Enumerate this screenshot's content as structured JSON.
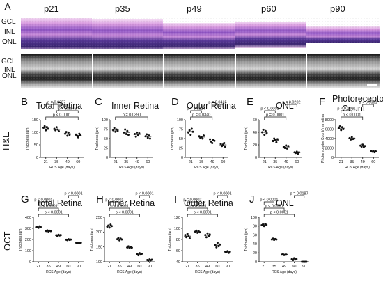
{
  "figure": {
    "panel_a": "A",
    "stages": [
      "p21",
      "p35",
      "p49",
      "p60",
      "p90"
    ],
    "layers_he": [
      "GCL",
      "INL",
      "ONL"
    ],
    "layers_oct": [
      "GCL",
      "INL",
      "ONL"
    ]
  },
  "rows": {
    "he": "H&E",
    "oct": "OCT"
  },
  "colors": {
    "he_purple": "#9b5cc9",
    "he_pink": "#e9b3e4",
    "oct_gray": "#9a9a9a"
  },
  "chart_data": [
    {
      "type": "scatter",
      "panel": "B",
      "title": "Total Retina",
      "ylabel": "Thickness (µm)",
      "xlabel": "RCS Age (days)",
      "categories": [
        "21",
        "35",
        "49",
        "60"
      ],
      "ylim": [
        0,
        150
      ],
      "yticks": [
        0,
        50,
        100,
        150
      ],
      "values": [
        [
          118,
          124,
          108,
          121,
          114
        ],
        [
          114,
          108,
          120,
          111,
          104
        ],
        [
          94,
          101,
          86,
          99,
          90
        ],
        [
          91,
          86,
          80,
          94,
          88
        ]
      ],
      "comparisons": [
        {
          "a": 0,
          "b": 3,
          "p": "p < 0.0001"
        },
        {
          "a": 1,
          "b": 3,
          "p": "p = 0.0042"
        },
        {
          "a": 0,
          "b": 2,
          "p": "p = 0.0057"
        }
      ]
    },
    {
      "type": "scatter",
      "panel": "C",
      "title": "Inner Retina",
      "ylabel": "Thickness (µm)",
      "xlabel": "RCS Age (days)",
      "categories": [
        "21",
        "35",
        "49",
        "60"
      ],
      "ylim": [
        0,
        100
      ],
      "yticks": [
        0,
        25,
        50,
        75,
        100
      ],
      "values": [
        [
          72,
          78,
          68,
          74,
          70
        ],
        [
          66,
          74,
          62,
          70,
          60
        ],
        [
          62,
          55,
          66,
          58,
          64
        ],
        [
          56,
          61,
          52,
          58,
          50
        ]
      ],
      "comparisons": [
        {
          "a": 0,
          "b": 3,
          "p": "p = 0.0390"
        }
      ]
    },
    {
      "type": "scatter",
      "panel": "D",
      "title": "Outer Retina",
      "ylabel": "Thickness (µm)",
      "xlabel": "RCS Age (days)",
      "categories": [
        "21",
        "35",
        "49",
        "60"
      ],
      "ylim": [
        0,
        100
      ],
      "yticks": [
        0,
        25,
        50,
        75,
        100
      ],
      "values": [
        [
          66,
          72,
          60,
          76,
          68
        ],
        [
          56,
          52,
          54,
          50,
          58
        ],
        [
          48,
          42,
          38,
          46,
          44
        ],
        [
          36,
          30,
          34,
          38,
          28
        ]
      ],
      "comparisons": [
        {
          "a": 0,
          "b": 2,
          "p": "p = 0.0340"
        },
        {
          "a": 0,
          "b": 1,
          "p": "p = 0.0224"
        },
        {
          "a": 2,
          "b": 3,
          "p": "p = 0.0415"
        }
      ]
    },
    {
      "type": "scatter",
      "panel": "E",
      "title": "ONL",
      "ylabel": "Thickness (µm)",
      "xlabel": "RCS Age (days)",
      "categories": [
        "21",
        "35",
        "49",
        "60"
      ],
      "ylim": [
        0,
        60
      ],
      "yticks": [
        0,
        20,
        40,
        60
      ],
      "values": [
        [
          40,
          44,
          36,
          42,
          38
        ],
        [
          26,
          30,
          28,
          24,
          29
        ],
        [
          17,
          15,
          19,
          14,
          18
        ],
        [
          8,
          7,
          9,
          6,
          8
        ]
      ],
      "comparisons": [
        {
          "a": 0,
          "b": 2,
          "p": "p = 0.0001"
        },
        {
          "a": 0,
          "b": 1,
          "p": "p < 0.0001"
        },
        {
          "a": 2,
          "b": 3,
          "p": "p = 0.0202"
        }
      ]
    },
    {
      "type": "scatter",
      "panel": "F",
      "title": "Photoreceptor",
      "subtitle": "Count",
      "ylabel": "Photoreceptor Count/mm retina",
      "xlabel": "RCS Age (days)",
      "categories": [
        "21",
        "35",
        "49",
        "60"
      ],
      "ylim": [
        0,
        8000
      ],
      "yticks": [
        0,
        2000,
        4000,
        6000,
        8000
      ],
      "values": [
        [
          6200,
          6600,
          5800,
          6400,
          6000
        ],
        [
          4100,
          3800,
          4300,
          3900,
          4000
        ],
        [
          2500,
          2300,
          2700,
          2200,
          2400
        ],
        [
          1300,
          1200,
          1400,
          1100,
          1300
        ]
      ],
      "comparisons": [
        {
          "a": 0,
          "b": 2,
          "p": "p < 0.0001"
        },
        {
          "a": 0,
          "b": 1,
          "p": "p < 0.0001"
        },
        {
          "a": 2,
          "b": 3,
          "p": "p < 0.0001"
        }
      ]
    },
    {
      "type": "scatter",
      "panel": "G",
      "title": "Total Retina",
      "ylabel": "Thickness (µm)",
      "xlabel": "RCS Age (days)",
      "categories": [
        "21",
        "35",
        "49",
        "60",
        "90"
      ],
      "ylim": [
        0,
        400
      ],
      "yticks": [
        0,
        100,
        200,
        300,
        400
      ],
      "values": [
        [
          310,
          315,
          305,
          318,
          312
        ],
        [
          276,
          282,
          272,
          279,
          275
        ],
        [
          238,
          232,
          242,
          236,
          240
        ],
        [
          198,
          194,
          202,
          196,
          199
        ],
        [
          170,
          168,
          172,
          166,
          171
        ]
      ],
      "comparisons": [
        {
          "a": 0,
          "b": 3,
          "p": "p < 0.0001"
        },
        {
          "a": 0,
          "b": 2,
          "p": "p < 0.0001"
        },
        {
          "a": 0,
          "b": 1,
          "p": "p < 0.0001"
        },
        {
          "a": 3,
          "b": 4,
          "p": "p < 0.0001"
        }
      ]
    },
    {
      "type": "scatter",
      "panel": "H",
      "title": "Inner Retina",
      "ylabel": "Thickness (µm)",
      "xlabel": "RCS Age (days)",
      "categories": [
        "21",
        "35",
        "49",
        "60",
        "90"
      ],
      "ylim": [
        100,
        250
      ],
      "yticks": [
        100,
        150,
        200,
        250
      ],
      "values": [
        [
          218,
          222,
          215,
          225,
          220
        ],
        [
          176,
          180,
          172,
          178,
          175
        ],
        [
          148,
          152,
          146,
          150,
          147
        ],
        [
          126,
          122,
          129,
          124,
          127
        ],
        [
          106,
          104,
          108,
          105,
          107
        ]
      ],
      "comparisons": [
        {
          "a": 0,
          "b": 3,
          "p": "p < 0.0001"
        },
        {
          "a": 0,
          "b": 2,
          "p": "p < 0.0001"
        },
        {
          "a": 0,
          "b": 1,
          "p": "p < 0.0001"
        },
        {
          "a": 3,
          "b": 4,
          "p": "p < 0.0001"
        }
      ]
    },
    {
      "type": "scatter",
      "panel": "I",
      "title": "Outer Retina",
      "ylabel": "Thickness (µm)",
      "xlabel": "RCS Age (days)",
      "categories": [
        "21",
        "35",
        "49",
        "60",
        "90"
      ],
      "ylim": [
        40,
        120
      ],
      "yticks": [
        40,
        60,
        80,
        100,
        120
      ],
      "values": [
        [
          88,
          84,
          90,
          86,
          82
        ],
        [
          94,
          96,
          92,
          95,
          93
        ],
        [
          88,
          84,
          91,
          86,
          89
        ],
        [
          70,
          66,
          74,
          68,
          71
        ],
        [
          58,
          57,
          59,
          56,
          58
        ]
      ],
      "comparisons": [
        {
          "a": 0,
          "b": 3,
          "p": "p < 0.0001"
        },
        {
          "a": 0,
          "b": 2,
          "p": "p < 0.0001"
        },
        {
          "a": 0,
          "b": 1,
          "p": "p = 0.0002"
        },
        {
          "a": 3,
          "b": 4,
          "p": "p < 0.0001"
        }
      ]
    },
    {
      "type": "scatter",
      "panel": "J",
      "title": "ONL",
      "ylabel": "Thickness (µm)",
      "xlabel": "RCS Age (days)",
      "categories": [
        "21",
        "35",
        "49",
        "60",
        "90"
      ],
      "ylim": [
        0,
        100
      ],
      "yticks": [
        0,
        20,
        40,
        60,
        80,
        100
      ],
      "values": [
        [
          82,
          84,
          80,
          85,
          83
        ],
        [
          50,
          52,
          49,
          51,
          50
        ],
        [
          16,
          17,
          15,
          16,
          16
        ],
        [
          6,
          4,
          8,
          5,
          7
        ],
        [
          0,
          0,
          0,
          0,
          0
        ]
      ],
      "comparisons": [
        {
          "a": 0,
          "b": 3,
          "p": "p < 0.0001"
        },
        {
          "a": 0,
          "b": 2,
          "p": "p < 0.0001"
        },
        {
          "a": 0,
          "b": 1,
          "p": "p < 0.0001"
        },
        {
          "a": 3,
          "b": 4,
          "p": "p = 0.0187"
        }
      ]
    }
  ]
}
